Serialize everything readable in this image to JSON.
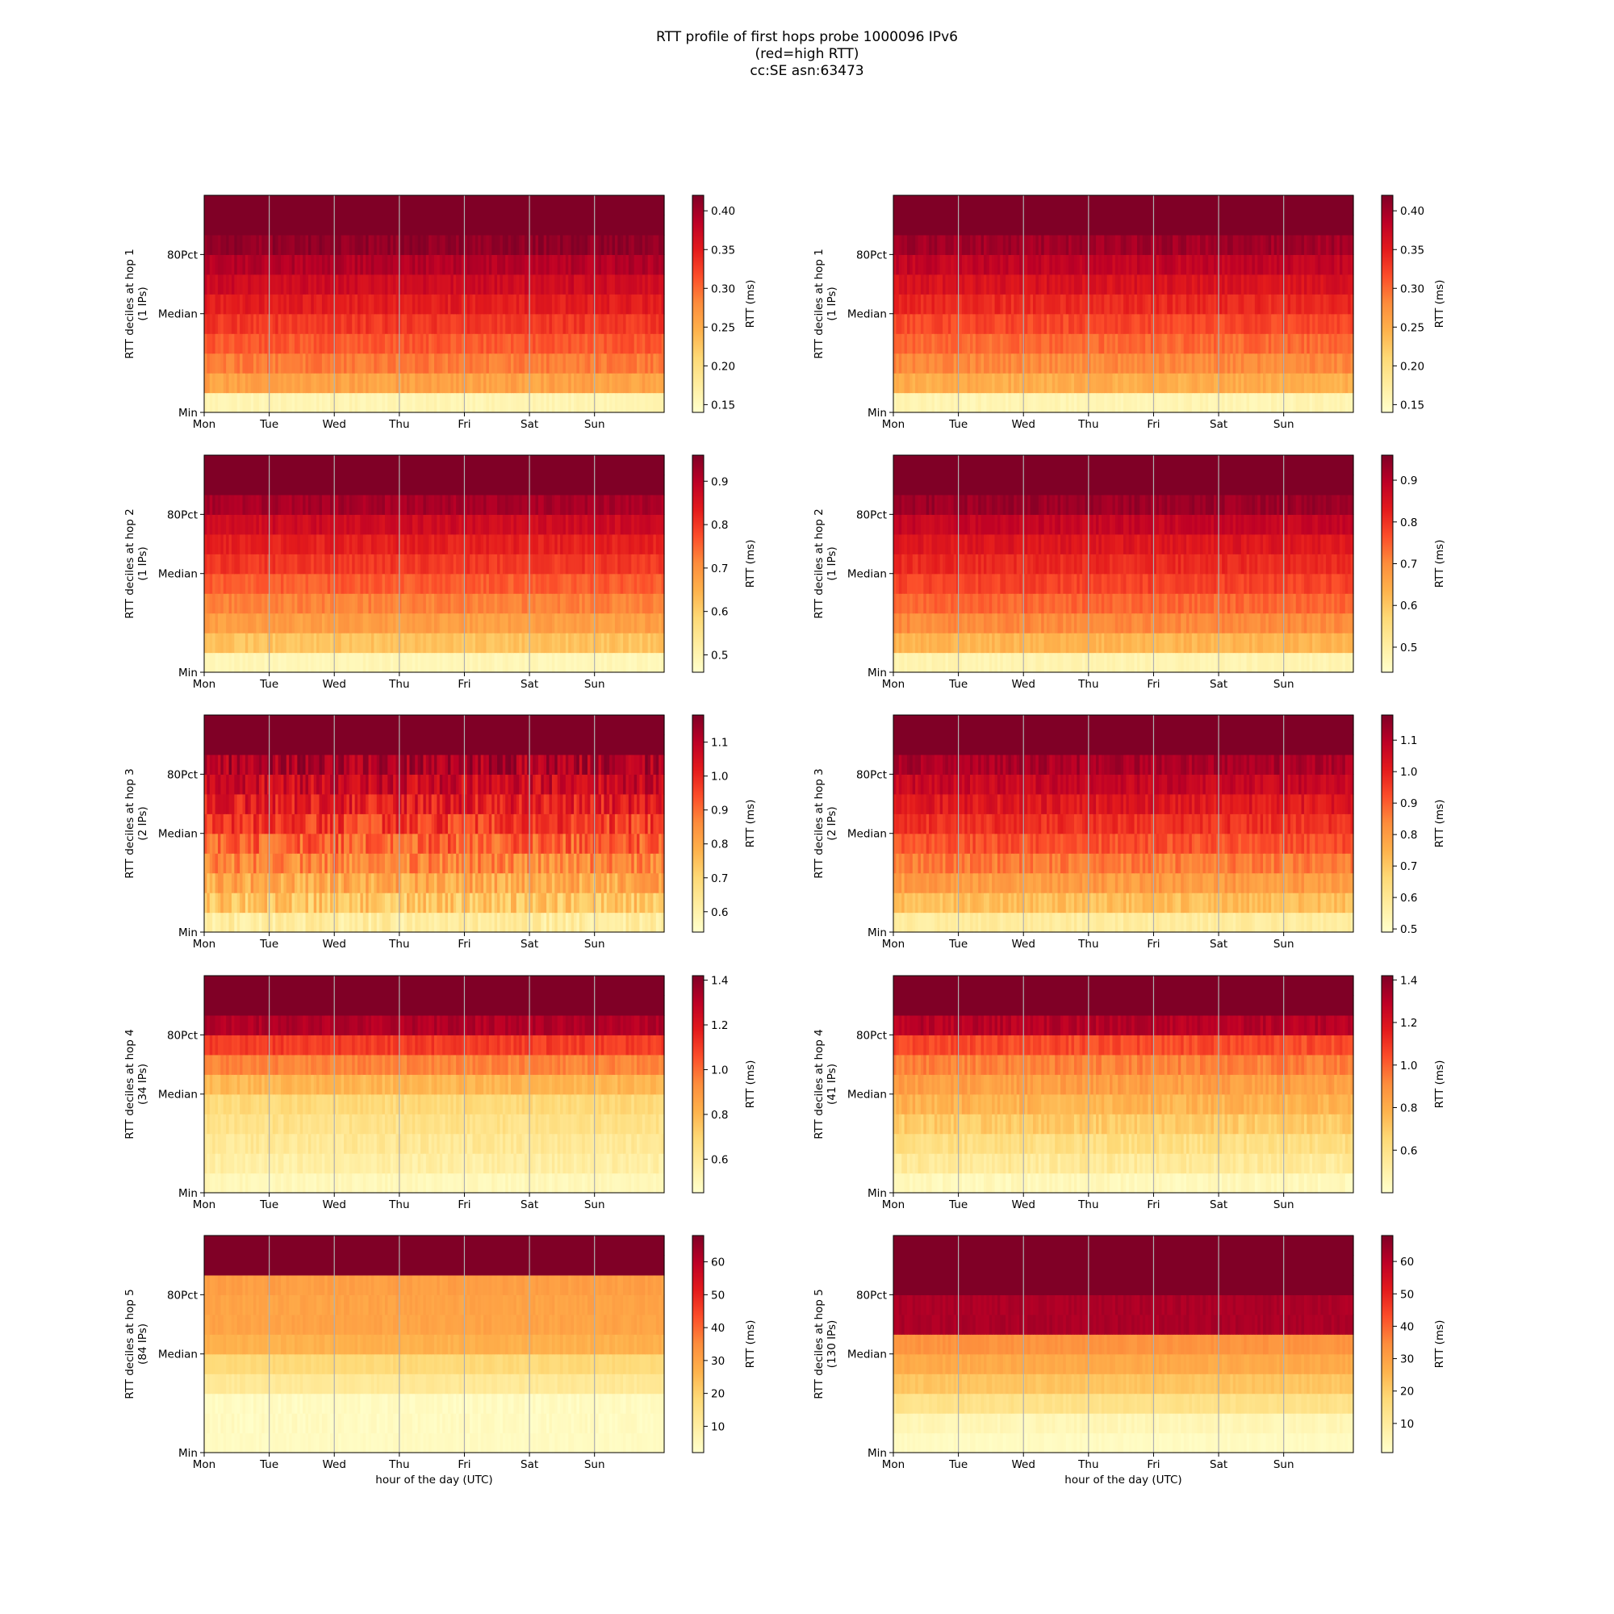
{
  "title_lines": [
    "RTT profile of first hops probe 1000096 IPv6",
    "(red=high RTT)",
    "cc:SE asn:63473"
  ],
  "colors": {
    "scale": [
      "#ffffcc",
      "#ffeda0",
      "#fed976",
      "#feb24c",
      "#fd8d3c",
      "#fc4e2a",
      "#e31a1c",
      "#bd0026",
      "#800026"
    ],
    "grid": "#b0b0b0",
    "axis": "#000000"
  },
  "chart_data": [
    {
      "type": "heatmap",
      "hop": 1,
      "ips": "1 IPs",
      "ylabel": "RTT deciles at hop 1",
      "ylabel2": "(1 IPs)",
      "xlabel": "",
      "x_categories": [
        "Mon",
        "Tue",
        "Wed",
        "Thu",
        "Fri",
        "Sat",
        "Sun"
      ],
      "y_ticks": [
        "Min",
        "Median",
        "80Pct"
      ],
      "colorbar_label": "RTT (ms)",
      "colorbar_range": [
        0.14,
        0.42
      ],
      "colorbar_ticks": [
        "0.15",
        "0.20",
        "0.25",
        "0.30",
        "0.35",
        "0.40"
      ],
      "colorbar_tick_values": [
        0.15,
        0.2,
        0.25,
        0.3,
        0.35,
        0.4
      ],
      "decile_rtt_ms": [
        0.16,
        0.26,
        0.29,
        0.31,
        0.33,
        0.35,
        0.37,
        0.39,
        0.41,
        0.45
      ],
      "variability": 0.012
    },
    {
      "type": "heatmap",
      "hop": 1,
      "ips": "1 IPs",
      "ylabel": "RTT deciles at hop 1",
      "ylabel2": "(1 IPs)",
      "xlabel": "",
      "x_categories": [
        "Mon",
        "Tue",
        "Wed",
        "Thu",
        "Fri",
        "Sat",
        "Sun"
      ],
      "y_ticks": [
        "Min",
        "Median",
        "80Pct"
      ],
      "colorbar_label": "RTT (ms)",
      "colorbar_range": [
        0.14,
        0.42
      ],
      "colorbar_ticks": [
        "0.15",
        "0.20",
        "0.25",
        "0.30",
        "0.35",
        "0.40"
      ],
      "colorbar_tick_values": [
        0.15,
        0.2,
        0.25,
        0.3,
        0.35,
        0.4
      ],
      "decile_rtt_ms": [
        0.16,
        0.25,
        0.28,
        0.3,
        0.32,
        0.34,
        0.36,
        0.38,
        0.4,
        0.45
      ],
      "variability": 0.012
    },
    {
      "type": "heatmap",
      "hop": 2,
      "ips": "1 IPs",
      "ylabel": "RTT deciles at hop 2",
      "ylabel2": "(1 IPs)",
      "xlabel": "",
      "x_categories": [
        "Mon",
        "Tue",
        "Wed",
        "Thu",
        "Fri",
        "Sat",
        "Sun"
      ],
      "y_ticks": [
        "Min",
        "Median",
        "80Pct"
      ],
      "colorbar_label": "RTT (ms)",
      "colorbar_range": [
        0.46,
        0.96
      ],
      "colorbar_ticks": [
        "0.5",
        "0.6",
        "0.7",
        "0.8",
        "0.9"
      ],
      "colorbar_tick_values": [
        0.5,
        0.6,
        0.7,
        0.8,
        0.9
      ],
      "decile_rtt_ms": [
        0.49,
        0.62,
        0.68,
        0.72,
        0.76,
        0.8,
        0.83,
        0.87,
        0.92,
        1.0
      ],
      "variability": 0.02
    },
    {
      "type": "heatmap",
      "hop": 2,
      "ips": "1 IPs",
      "ylabel": "RTT deciles at hop 2",
      "ylabel2": "(1 IPs)",
      "xlabel": "",
      "x_categories": [
        "Mon",
        "Tue",
        "Wed",
        "Thu",
        "Fri",
        "Sat",
        "Sun"
      ],
      "y_ticks": [
        "Min",
        "Median",
        "80Pct"
      ],
      "colorbar_label": "RTT (ms)",
      "colorbar_range": [
        0.44,
        0.96
      ],
      "colorbar_ticks": [
        "0.5",
        "0.6",
        "0.7",
        "0.8",
        "0.9"
      ],
      "colorbar_tick_values": [
        0.5,
        0.6,
        0.7,
        0.8,
        0.9
      ],
      "decile_rtt_ms": [
        0.48,
        0.63,
        0.7,
        0.74,
        0.78,
        0.81,
        0.84,
        0.88,
        0.93,
        1.0
      ],
      "variability": 0.02
    },
    {
      "type": "heatmap",
      "hop": 3,
      "ips": "2 IPs",
      "ylabel": "RTT deciles at hop 3",
      "ylabel2": "(2 IPs)",
      "xlabel": "",
      "x_categories": [
        "Mon",
        "Tue",
        "Wed",
        "Thu",
        "Fri",
        "Sat",
        "Sun"
      ],
      "y_ticks": [
        "Min",
        "Median",
        "80Pct"
      ],
      "colorbar_label": "RTT (ms)",
      "colorbar_range": [
        0.54,
        1.18
      ],
      "colorbar_ticks": [
        "0.6",
        "0.7",
        "0.8",
        "0.9",
        "1.0",
        "1.1"
      ],
      "colorbar_tick_values": [
        0.6,
        0.7,
        0.8,
        0.9,
        1.0,
        1.1
      ],
      "decile_rtt_ms": [
        0.62,
        0.74,
        0.8,
        0.86,
        0.92,
        0.97,
        1.02,
        1.07,
        1.12,
        1.25
      ],
      "variability": 0.07
    },
    {
      "type": "heatmap",
      "hop": 3,
      "ips": "2 IPs",
      "ylabel": "RTT deciles at hop 3",
      "ylabel2": "(2 IPs)",
      "xlabel": "",
      "x_categories": [
        "Mon",
        "Tue",
        "Wed",
        "Thu",
        "Fri",
        "Sat",
        "Sun"
      ],
      "y_ticks": [
        "Min",
        "Median",
        "80Pct"
      ],
      "colorbar_label": "RTT (ms)",
      "colorbar_range": [
        0.49,
        1.18
      ],
      "colorbar_ticks": [
        "0.5",
        "0.6",
        "0.7",
        "0.8",
        "0.9",
        "1.0",
        "1.1"
      ],
      "colorbar_tick_values": [
        0.5,
        0.6,
        0.7,
        0.8,
        0.9,
        1.0,
        1.1
      ],
      "decile_rtt_ms": [
        0.58,
        0.72,
        0.8,
        0.86,
        0.92,
        0.97,
        1.02,
        1.07,
        1.12,
        1.25
      ],
      "variability": 0.04
    },
    {
      "type": "heatmap",
      "hop": 4,
      "ips": "34 IPs",
      "ylabel": "RTT deciles at hop 4",
      "ylabel2": "(34 IPs)",
      "xlabel": "",
      "x_categories": [
        "Mon",
        "Tue",
        "Wed",
        "Thu",
        "Fri",
        "Sat",
        "Sun"
      ],
      "y_ticks": [
        "Min",
        "Median",
        "80Pct"
      ],
      "colorbar_label": "RTT (ms)",
      "colorbar_range": [
        0.45,
        1.42
      ],
      "colorbar_ticks": [
        "0.6",
        "0.8",
        "1.0",
        "1.2",
        "1.4"
      ],
      "colorbar_tick_values": [
        0.6,
        0.8,
        1.0,
        1.2,
        1.4
      ],
      "decile_rtt_ms": [
        0.5,
        0.56,
        0.6,
        0.64,
        0.68,
        0.8,
        0.95,
        1.1,
        1.32,
        1.6
      ],
      "variability": 0.04
    },
    {
      "type": "heatmap",
      "hop": 4,
      "ips": "41 IPs",
      "ylabel": "RTT deciles at hop 4",
      "ylabel2": "(41 IPs)",
      "xlabel": "",
      "x_categories": [
        "Mon",
        "Tue",
        "Wed",
        "Thu",
        "Fri",
        "Sat",
        "Sun"
      ],
      "y_ticks": [
        "Min",
        "Median",
        "80Pct"
      ],
      "colorbar_label": "RTT (ms)",
      "colorbar_range": [
        0.4,
        1.42
      ],
      "colorbar_ticks": [
        "0.6",
        "0.8",
        "1.0",
        "1.2",
        "1.4"
      ],
      "colorbar_tick_values": [
        0.6,
        0.8,
        1.0,
        1.2,
        1.4
      ],
      "decile_rtt_ms": [
        0.45,
        0.55,
        0.62,
        0.7,
        0.78,
        0.85,
        0.93,
        1.05,
        1.3,
        1.6
      ],
      "variability": 0.05
    },
    {
      "type": "heatmap",
      "hop": 5,
      "ips": "84 IPs",
      "ylabel": "RTT deciles at hop 5",
      "ylabel2": "(84 IPs)",
      "xlabel": "hour of the day (UTC)",
      "x_categories": [
        "Mon",
        "Tue",
        "Wed",
        "Thu",
        "Fri",
        "Sat",
        "Sun"
      ],
      "y_ticks": [
        "Min",
        "Median",
        "80Pct"
      ],
      "colorbar_label": "RTT (ms)",
      "colorbar_range": [
        2,
        68
      ],
      "colorbar_ticks": [
        "10",
        "20",
        "30",
        "40",
        "50",
        "60"
      ],
      "colorbar_tick_values": [
        10,
        20,
        30,
        40,
        50,
        60
      ],
      "decile_rtt_ms": [
        4,
        4,
        4,
        12,
        18,
        27,
        30,
        30,
        31,
        75
      ],
      "variability": 1.5
    },
    {
      "type": "heatmap",
      "hop": 5,
      "ips": "130 IPs",
      "ylabel": "RTT deciles at hop 5",
      "ylabel2": "(130 IPs)",
      "xlabel": "hour of the day (UTC)",
      "x_categories": [
        "Mon",
        "Tue",
        "Wed",
        "Thu",
        "Fri",
        "Sat",
        "Sun"
      ],
      "y_ticks": [
        "Min",
        "Median",
        "80Pct"
      ],
      "colorbar_label": "RTT (ms)",
      "colorbar_range": [
        1,
        68
      ],
      "colorbar_ticks": [
        "10",
        "20",
        "30",
        "40",
        "50",
        "60"
      ],
      "colorbar_tick_values": [
        10,
        20,
        30,
        40,
        50,
        60
      ],
      "decile_rtt_ms": [
        3,
        5,
        14,
        22,
        28,
        33,
        62,
        62,
        70,
        75
      ],
      "variability": 1.5
    }
  ]
}
